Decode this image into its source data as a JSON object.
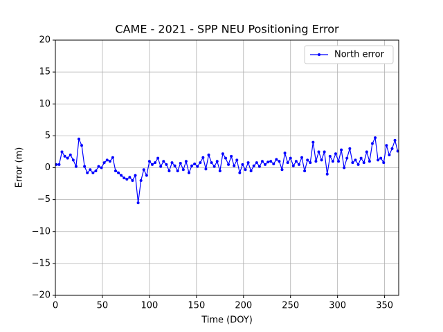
{
  "chart_data": {
    "type": "line",
    "title": "CAME - 2021 - SPP NEU Positioning Error",
    "x_label": "Time (DOY)",
    "y_label": "Error (m)",
    "x": [
      1,
      4,
      7,
      10,
      13,
      16,
      19,
      22,
      25,
      28,
      31,
      34,
      37,
      40,
      43,
      46,
      49,
      52,
      55,
      58,
      61,
      64,
      67,
      70,
      73,
      76,
      79,
      82,
      85,
      88,
      91,
      94,
      97,
      100,
      103,
      106,
      109,
      112,
      115,
      118,
      121,
      124,
      127,
      130,
      133,
      136,
      139,
      142,
      145,
      148,
      151,
      154,
      157,
      160,
      163,
      166,
      169,
      172,
      175,
      178,
      181,
      184,
      187,
      190,
      193,
      196,
      199,
      202,
      205,
      208,
      211,
      214,
      217,
      220,
      223,
      226,
      229,
      232,
      235,
      238,
      241,
      244,
      247,
      250,
      253,
      256,
      259,
      262,
      265,
      268,
      271,
      274,
      277,
      280,
      283,
      286,
      289,
      292,
      295,
      298,
      301,
      304,
      307,
      310,
      313,
      316,
      319,
      322,
      325,
      328,
      331,
      334,
      337,
      340,
      343,
      346,
      349,
      352,
      355,
      358,
      361,
      364
    ],
    "series": [
      {
        "name": "North error",
        "color": "#0000ff",
        "values": [
          0.5,
          0.5,
          2.5,
          1.8,
          1.5,
          2.0,
          1.2,
          0.2,
          4.5,
          3.5,
          0.2,
          -0.8,
          -0.3,
          -0.8,
          -0.5,
          0.2,
          0.0,
          0.8,
          1.2,
          1.0,
          1.6,
          -0.5,
          -0.8,
          -1.2,
          -1.6,
          -1.8,
          -1.5,
          -2.0,
          -1.2,
          -5.5,
          -2.0,
          -0.3,
          -1.2,
          1.0,
          0.5,
          0.8,
          1.5,
          0.2,
          1.0,
          0.5,
          -0.5,
          0.8,
          0.3,
          -0.5,
          0.7,
          -0.3,
          1.0,
          -0.8,
          0.3,
          0.6,
          0.2,
          0.8,
          1.6,
          -0.2,
          2.0,
          0.8,
          0.2,
          1.0,
          -0.5,
          2.2,
          1.5,
          0.5,
          1.8,
          0.3,
          1.2,
          -0.8,
          0.5,
          -0.3,
          0.8,
          -0.5,
          0.3,
          0.8,
          0.2,
          1.0,
          0.5,
          0.9,
          1.0,
          0.6,
          1.3,
          1.0,
          -0.3,
          2.3,
          0.8,
          1.5,
          0.3,
          1.0,
          0.5,
          1.6,
          -0.5,
          1.2,
          0.8,
          4.0,
          1.0,
          2.5,
          1.2,
          2.5,
          -1.0,
          1.8,
          1.0,
          2.2,
          1.0,
          2.8,
          0.0,
          1.5,
          3.0,
          0.8,
          1.2,
          0.5,
          1.5,
          0.8,
          2.5,
          1.0,
          3.8,
          4.7,
          1.2,
          1.5,
          0.8,
          3.5,
          2.0,
          3.0,
          4.3,
          2.6
        ]
      }
    ],
    "xlim": [
      0,
      365
    ],
    "xticks": [
      0,
      50,
      100,
      150,
      200,
      250,
      300,
      350
    ],
    "ylim": [
      -20,
      20
    ],
    "yticks": [
      {
        "value": -20,
        "label": "−20"
      },
      {
        "value": -15,
        "label": "−15"
      },
      {
        "value": -10,
        "label": "−10"
      },
      {
        "value": -5,
        "label": "−5"
      },
      0,
      5,
      10,
      15,
      20
    ],
    "grid": true,
    "legend": "upper right"
  }
}
